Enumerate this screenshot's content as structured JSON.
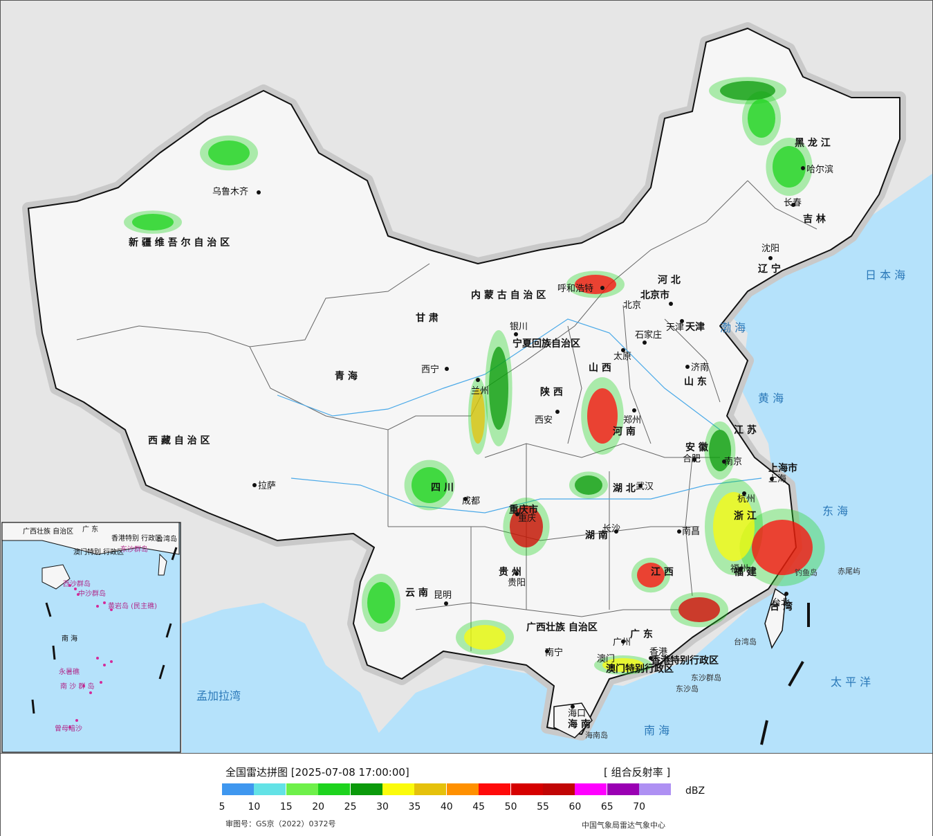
{
  "map": {
    "regions": [
      "新 疆 维 吾 尔 自 治 区",
      "西 藏 自 治 区",
      "青 海",
      "四 川",
      "甘 肃",
      "内 蒙 古 自 治 区",
      "黑 龙 江",
      "吉 林",
      "辽 宁",
      "河 北",
      "山 东",
      "江 苏",
      "安 徽",
      "河 南",
      "湖 北",
      "湖 南",
      "江 西",
      "浙 江",
      "福 建",
      "广 东",
      "广西壮族 自治区",
      "贵 州",
      "云 南",
      "陕 西",
      "山 西",
      "重庆市",
      "宁夏回族自治区",
      "上海市",
      "北京市",
      "天津",
      "台 湾",
      "海 南",
      "香港特别行政区",
      "澳门特别行政区"
    ],
    "cities": [
      "乌鲁木齐",
      "拉萨",
      "西宁",
      "兰州",
      "银川",
      "呼和浩特",
      "北京",
      "天津",
      "石家庄",
      "太原",
      "济南",
      "郑州",
      "西安",
      "成都",
      "重庆",
      "武汉",
      "合肥",
      "南京",
      "上海",
      "杭州",
      "南昌",
      "长沙",
      "贵阳",
      "昆明",
      "南宁",
      "广州",
      "香港",
      "澳门",
      "福州",
      "台北",
      "海口",
      "长春",
      "沈阳",
      "哈尔滨"
    ],
    "seas": [
      "日 本 海",
      "渤 海",
      "黄 海",
      "东 海",
      "太 平 洋",
      "南 海",
      "孟加拉湾"
    ],
    "islands": [
      "钓鱼岛",
      "赤尾屿",
      "台湾岛",
      "东沙群岛",
      "东沙岛",
      "海南岛"
    ],
    "inset_labels": [
      "南 海",
      "广西壮族 自治区",
      "广 东",
      "香港特别 行政区",
      "澳门特别 行政区",
      "台湾岛",
      "东沙群岛",
      "西沙群岛",
      "中沙群岛",
      "黄岩岛 (民主礁)",
      "南 沙 群 岛",
      "永暑礁",
      "曾母暗沙"
    ]
  },
  "legend": {
    "title": "全国雷达拼图 [2025-07-08 17:00:00]",
    "product": "[ 组合反射率 ]",
    "unit": "dBZ",
    "review_number": "审图号：GS京（2022）0372号",
    "agency": "中国气象局雷达气象中心",
    "scale": [
      {
        "value": "5",
        "color": "#3f97ef"
      },
      {
        "value": "10",
        "color": "#63e2e6"
      },
      {
        "value": "15",
        "color": "#6ef04a"
      },
      {
        "value": "20",
        "color": "#1ed31e"
      },
      {
        "value": "25",
        "color": "#0b9a0b"
      },
      {
        "value": "30",
        "color": "#fbfb0b"
      },
      {
        "value": "35",
        "color": "#e5c10b"
      },
      {
        "value": "40",
        "color": "#ff9000"
      },
      {
        "value": "45",
        "color": "#ff0a0a"
      },
      {
        "value": "50",
        "color": "#d60000"
      },
      {
        "value": "55",
        "color": "#c10505"
      },
      {
        "value": "60",
        "color": "#ff00ff"
      },
      {
        "value": "65",
        "color": "#9a00b3"
      },
      {
        "value": "70",
        "color": "#ae90f3"
      }
    ]
  },
  "colors": {
    "sea": "#b5e2fb",
    "land_foreign": "#e6e6e6",
    "china": "#f6f6f6",
    "border": "#111111"
  }
}
